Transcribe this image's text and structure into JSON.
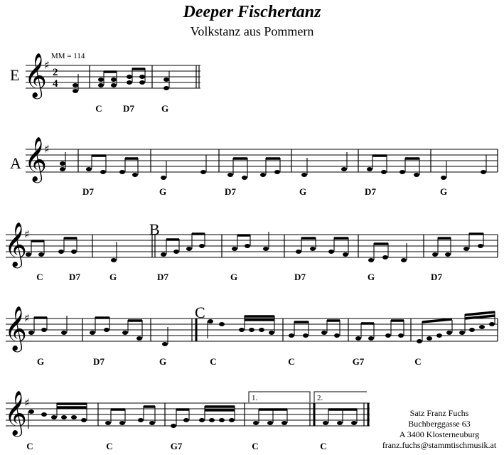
{
  "title": "Deeper Fischertanz",
  "subtitle": "Volkstanz aus Pommern",
  "tempo": "MM = 114",
  "time_signature": {
    "top": "2",
    "bottom": "4"
  },
  "key": "G major (1 sharp)",
  "sections": {
    "E": "E",
    "A": "A",
    "B": "B",
    "C": "C"
  },
  "chords": {
    "line1": [
      "C",
      "D7",
      "G"
    ],
    "line2": [
      "D7",
      "G",
      "D7",
      "G",
      "D7",
      "G"
    ],
    "line3": [
      "C",
      "D7",
      "G",
      "D7",
      "G",
      "D7",
      "G",
      "D7"
    ],
    "line4": [
      "G",
      "D7",
      "G",
      "C",
      "C",
      "G7",
      "C"
    ],
    "line5": [
      "C",
      "C",
      "G7",
      "C",
      "C"
    ]
  },
  "endings": {
    "first": "1.",
    "second": "2."
  },
  "credits": {
    "line1": "Satz Franz Fuchs",
    "line2": "Buchberggasse 63",
    "line3": "A 3400 Klosterneuburg",
    "line4": "franz.fuchs@stammtischmusik.at"
  },
  "icons": {
    "clef": "treble-clef-icon",
    "sharp": "sharp-icon"
  }
}
